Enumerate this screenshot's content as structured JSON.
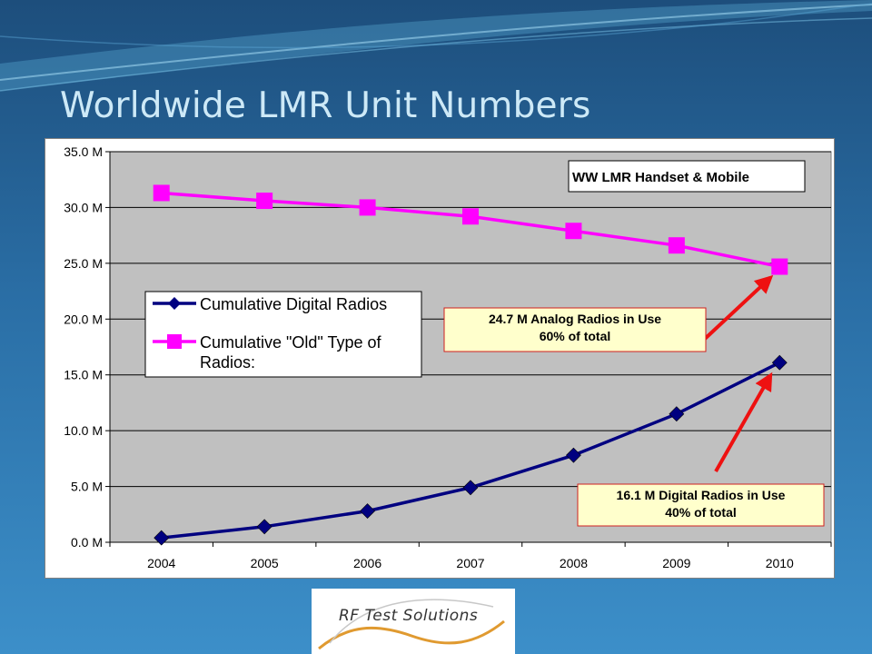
{
  "slide": {
    "title": "Worldwide LMR Unit Numbers"
  },
  "logo": {
    "text": "RF Test Solutions"
  },
  "colors": {
    "digital": "#000080",
    "old": "#ff00ff",
    "plot_bg": "#c0c0c0",
    "arrow": "#ee1111",
    "callout_bg": "#ffffcc",
    "callout_border": "#d02020"
  },
  "chart_data": {
    "type": "line",
    "title": "WW LMR Handset & Mobile",
    "x": [
      "2004",
      "2005",
      "2006",
      "2007",
      "2008",
      "2009",
      "2010"
    ],
    "ylim": [
      0,
      35
    ],
    "y_ticks": [
      "0.0 M",
      "5.0 M",
      "10.0 M",
      "15.0 M",
      "20.0 M",
      "25.0 M",
      "30.0 M",
      "35.0 M"
    ],
    "series": [
      {
        "name": "Cumulative Digital Radios",
        "marker": "diamond",
        "values": [
          0.4,
          1.4,
          2.8,
          4.9,
          7.8,
          11.5,
          16.1
        ]
      },
      {
        "name": "Cumulative \"Old\" Type of Radios:",
        "marker": "square",
        "values": [
          31.3,
          30.6,
          30.0,
          29.2,
          27.9,
          26.6,
          24.7
        ]
      }
    ],
    "legend_position": "left, middle",
    "grid": "horizontal",
    "annotations": [
      {
        "lines": [
          "24.7 M Analog Radios in Use",
          "60% of total"
        ],
        "points_to": "2010 old radios value"
      },
      {
        "lines": [
          "16.1 M Digital Radios in Use",
          "40% of total"
        ],
        "points_to": "2010 digital radios value"
      }
    ]
  }
}
